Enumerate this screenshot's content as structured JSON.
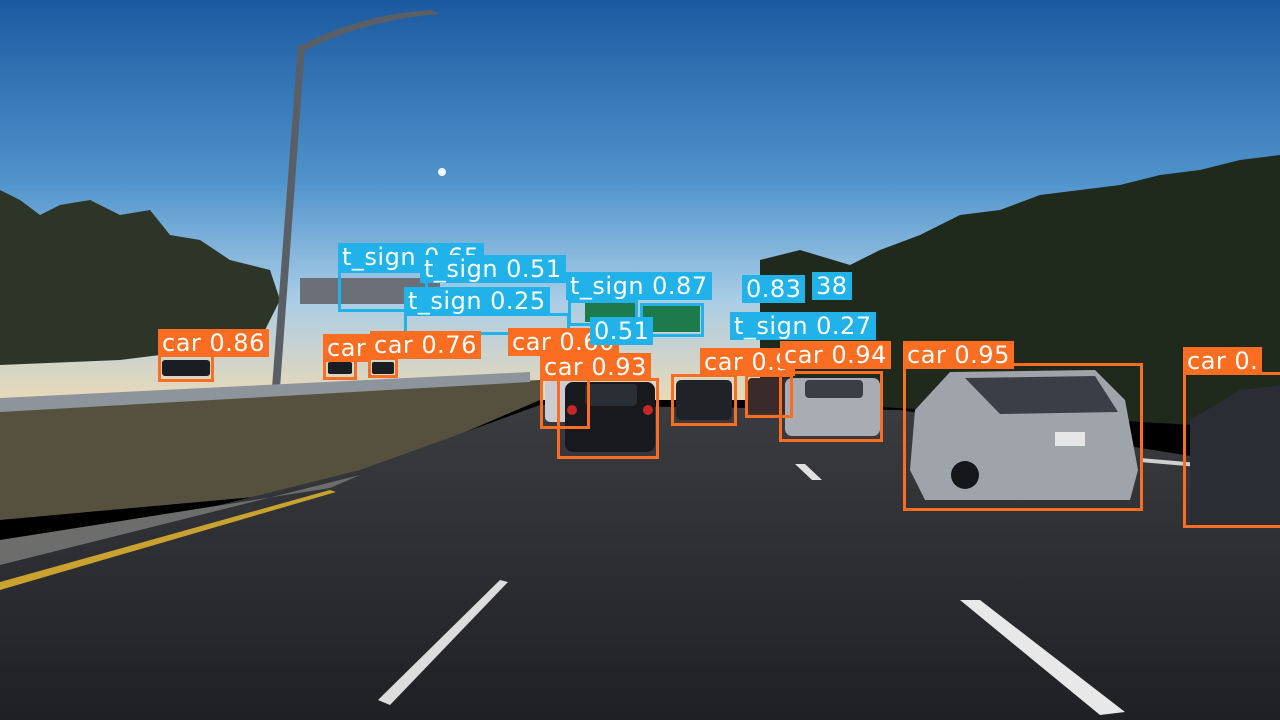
{
  "colors": {
    "car": "#fb6e22",
    "traffic_sign": "#20b2e8"
  },
  "detections": [
    {
      "class": "car",
      "label": "car 0.86"
    },
    {
      "class": "car",
      "label": "car"
    },
    {
      "class": "car",
      "label": "car 0.76"
    },
    {
      "class": "car",
      "label": "car 0.60"
    },
    {
      "class": "car",
      "label": "car 0.93"
    },
    {
      "class": "car",
      "label": "car 0.9"
    },
    {
      "class": "car",
      "label": "car 0.94"
    },
    {
      "class": "car",
      "label": "car 0.95"
    },
    {
      "class": "car",
      "label": "car 0."
    },
    {
      "class": "traffic_sign",
      "label": "t_sign 0.65"
    },
    {
      "class": "traffic_sign",
      "label": "t_sign 0.51"
    },
    {
      "class": "traffic_sign",
      "label": "t_sign 0.25"
    },
    {
      "class": "traffic_sign",
      "label": "t_sign 0.87"
    },
    {
      "class": "traffic_sign",
      "label": "0.83"
    },
    {
      "class": "traffic_sign",
      "label": "38"
    },
    {
      "class": "traffic_sign",
      "label": "t_sign 0.27"
    },
    {
      "class": "traffic_sign",
      "label": "0.51"
    }
  ]
}
